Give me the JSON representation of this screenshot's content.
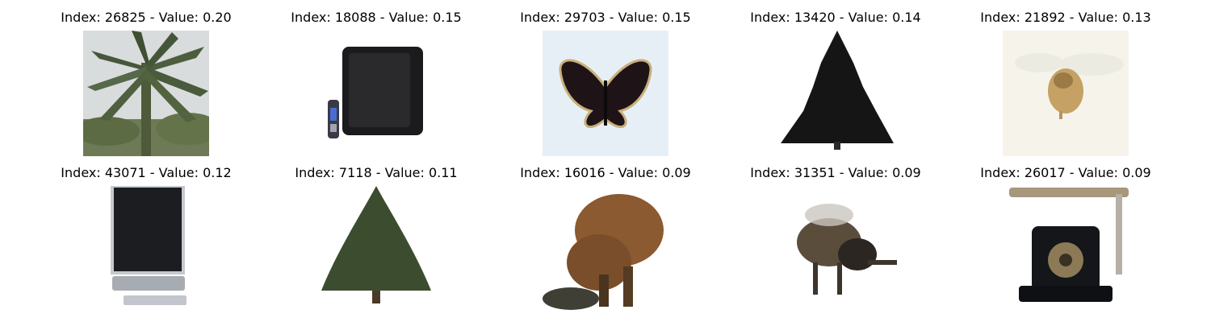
{
  "grid": {
    "panels": [
      {
        "title": "Index: 26825 - Value: 0.20",
        "index": 26825,
        "value": 0.2,
        "image_icon": "palm-tree-icon"
      },
      {
        "title": "Index: 18088 - Value: 0.15",
        "index": 18088,
        "value": 0.15,
        "image_icon": "television-remote-icon"
      },
      {
        "title": "Index: 29703 - Value: 0.15",
        "index": 29703,
        "value": 0.15,
        "image_icon": "butterfly-icon"
      },
      {
        "title": "Index: 13420 - Value: 0.14",
        "index": 13420,
        "value": 0.14,
        "image_icon": "pine-tree-icon"
      },
      {
        "title": "Index: 21892 - Value: 0.13",
        "index": 21892,
        "value": 0.13,
        "image_icon": "bee-icon"
      },
      {
        "title": "Index: 43071 - Value: 0.12",
        "index": 43071,
        "value": 0.12,
        "image_icon": "flat-tv-icon"
      },
      {
        "title": "Index: 7118 - Value: 0.11",
        "index": 7118,
        "value": 0.11,
        "image_icon": "conifer-tree-icon"
      },
      {
        "title": "Index: 16016 - Value: 0.09",
        "index": 16016,
        "value": 0.09,
        "image_icon": "bison-icon"
      },
      {
        "title": "Index: 31351 - Value: 0.09",
        "index": 31351,
        "value": 0.09,
        "image_icon": "bumblebee-icon"
      },
      {
        "title": "Index: 26017 - Value: 0.09",
        "index": 26017,
        "value": 0.09,
        "image_icon": "rotary-telephone-icon"
      }
    ]
  }
}
